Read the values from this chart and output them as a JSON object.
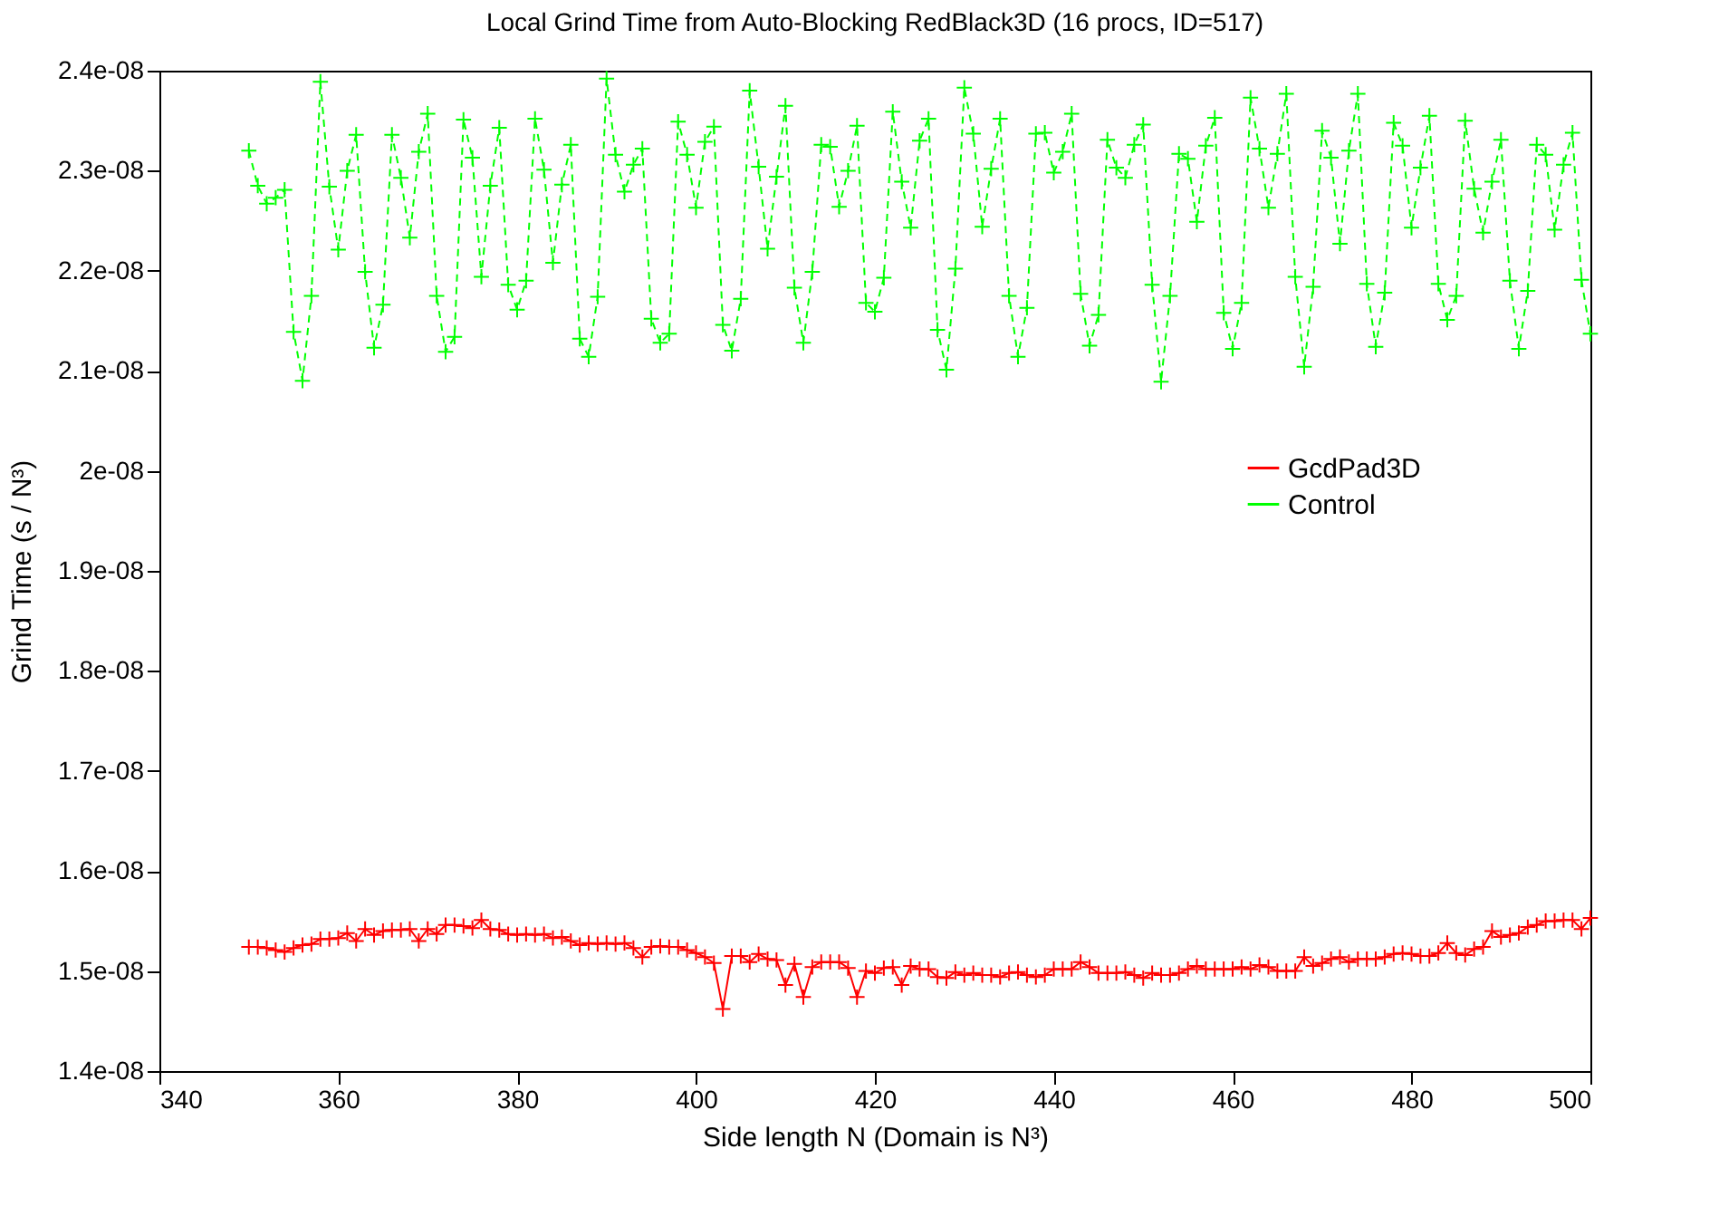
{
  "chart_data": {
    "type": "line",
    "title": "Local Grind Time from Auto-Blocking RedBlack3D (16 procs, ID=517)",
    "xlabel": "Side length N (Domain is N³)",
    "ylabel": "Grind Time (s / N³)",
    "x": [
      350,
      351,
      352,
      353,
      354,
      355,
      356,
      357,
      358,
      359,
      360,
      361,
      362,
      363,
      364,
      365,
      366,
      367,
      368,
      369,
      370,
      371,
      372,
      373,
      374,
      375,
      376,
      377,
      378,
      379,
      380,
      381,
      382,
      383,
      384,
      385,
      386,
      387,
      388,
      389,
      390,
      391,
      392,
      393,
      394,
      395,
      396,
      397,
      398,
      399,
      400,
      401,
      402,
      403,
      404,
      405,
      406,
      407,
      408,
      409,
      410,
      411,
      412,
      413,
      414,
      415,
      416,
      417,
      418,
      419,
      420,
      421,
      422,
      423,
      424,
      425,
      426,
      427,
      428,
      429,
      430,
      431,
      432,
      433,
      434,
      435,
      436,
      437,
      438,
      439,
      440,
      441,
      442,
      443,
      444,
      445,
      446,
      447,
      448,
      449,
      450,
      451,
      452,
      453,
      454,
      455,
      456,
      457,
      458,
      459,
      460,
      461,
      462,
      463,
      464,
      465,
      466,
      467,
      468,
      469,
      470,
      471,
      472,
      473,
      474,
      475,
      476,
      477,
      478,
      479,
      480,
      481,
      482,
      483,
      484,
      485,
      486,
      487,
      488,
      489,
      490,
      491,
      492,
      493,
      494,
      495,
      496,
      497,
      498,
      499,
      500
    ],
    "series": [
      {
        "name": "GcdPad3D",
        "color": "#ff0000",
        "marker": "cross",
        "line_style": "solid",
        "values": [
          1.524e-08,
          1.524e-08,
          1.523e-08,
          1.521e-08,
          1.519e-08,
          1.523e-08,
          1.526e-08,
          1.527e-08,
          1.532e-08,
          1.532e-08,
          1.533e-08,
          1.538e-08,
          1.53e-08,
          1.542e-08,
          1.536e-08,
          1.54e-08,
          1.541e-08,
          1.541e-08,
          1.542e-08,
          1.53e-08,
          1.542e-08,
          1.537e-08,
          1.546e-08,
          1.546e-08,
          1.545e-08,
          1.543e-08,
          1.551e-08,
          1.542e-08,
          1.541e-08,
          1.537e-08,
          1.536e-08,
          1.537e-08,
          1.536e-08,
          1.537e-08,
          1.533e-08,
          1.534e-08,
          1.53e-08,
          1.526e-08,
          1.528e-08,
          1.527e-08,
          1.528e-08,
          1.527e-08,
          1.528e-08,
          1.523e-08,
          1.514e-08,
          1.524e-08,
          1.525e-08,
          1.524e-08,
          1.524e-08,
          1.521e-08,
          1.518e-08,
          1.514e-08,
          1.508e-08,
          1.462e-08,
          1.515e-08,
          1.515e-08,
          1.509e-08,
          1.517e-08,
          1.512e-08,
          1.511e-08,
          1.486e-08,
          1.507e-08,
          1.474e-08,
          1.504e-08,
          1.509e-08,
          1.509e-08,
          1.509e-08,
          1.503e-08,
          1.474e-08,
          1.5e-08,
          1.498e-08,
          1.503e-08,
          1.504e-08,
          1.486e-08,
          1.505e-08,
          1.502e-08,
          1.502e-08,
          1.494e-08,
          1.493e-08,
          1.499e-08,
          1.496e-08,
          1.498e-08,
          1.496e-08,
          1.496e-08,
          1.494e-08,
          1.498e-08,
          1.499e-08,
          1.496e-08,
          1.494e-08,
          1.496e-08,
          1.502e-08,
          1.502e-08,
          1.502e-08,
          1.509e-08,
          1.504e-08,
          1.498e-08,
          1.498e-08,
          1.498e-08,
          1.499e-08,
          1.496e-08,
          1.493e-08,
          1.498e-08,
          1.496e-08,
          1.496e-08,
          1.498e-08,
          1.502e-08,
          1.505e-08,
          1.502e-08,
          1.502e-08,
          1.502e-08,
          1.502e-08,
          1.504e-08,
          1.502e-08,
          1.506e-08,
          1.504e-08,
          1.5e-08,
          1.5e-08,
          1.5e-08,
          1.514e-08,
          1.505e-08,
          1.508e-08,
          1.512e-08,
          1.514e-08,
          1.509e-08,
          1.512e-08,
          1.512e-08,
          1.512e-08,
          1.514e-08,
          1.517e-08,
          1.518e-08,
          1.517e-08,
          1.515e-08,
          1.515e-08,
          1.518e-08,
          1.528e-08,
          1.518e-08,
          1.516e-08,
          1.522e-08,
          1.524e-08,
          1.54e-08,
          1.534e-08,
          1.536e-08,
          1.538e-08,
          1.544e-08,
          1.546e-08,
          1.55e-08,
          1.55e-08,
          1.551e-08,
          1.551e-08,
          1.542e-08,
          1.553e-08
        ]
      },
      {
        "name": "Control",
        "color": "#00ff00",
        "marker": "cross",
        "line_style": "dashed",
        "values": [
          2.32e-08,
          2.285e-08,
          2.267e-08,
          2.273e-08,
          2.281e-08,
          2.139e-08,
          2.09e-08,
          2.175e-08,
          2.389e-08,
          2.284e-08,
          2.221e-08,
          2.3e-08,
          2.336e-08,
          2.199e-08,
          2.123e-08,
          2.166e-08,
          2.336e-08,
          2.293e-08,
          2.233e-08,
          2.319e-08,
          2.357e-08,
          2.175e-08,
          2.119e-08,
          2.134e-08,
          2.351e-08,
          2.313e-08,
          2.194e-08,
          2.285e-08,
          2.343e-08,
          2.186e-08,
          2.161e-08,
          2.19e-08,
          2.352e-08,
          2.301e-08,
          2.208e-08,
          2.286e-08,
          2.326e-08,
          2.132e-08,
          2.114e-08,
          2.174e-08,
          2.392e-08,
          2.316e-08,
          2.279e-08,
          2.306e-08,
          2.322e-08,
          2.152e-08,
          2.128e-08,
          2.137e-08,
          2.349e-08,
          2.316e-08,
          2.263e-08,
          2.329e-08,
          2.344e-08,
          2.146e-08,
          2.12e-08,
          2.172e-08,
          2.38e-08,
          2.304e-08,
          2.222e-08,
          2.294e-08,
          2.365e-08,
          2.183e-08,
          2.128e-08,
          2.199e-08,
          2.326e-08,
          2.324e-08,
          2.264e-08,
          2.3e-08,
          2.345e-08,
          2.168e-08,
          2.159e-08,
          2.193e-08,
          2.359e-08,
          2.289e-08,
          2.243e-08,
          2.33e-08,
          2.352e-08,
          2.141e-08,
          2.101e-08,
          2.202e-08,
          2.383e-08,
          2.337e-08,
          2.244e-08,
          2.302e-08,
          2.352e-08,
          2.175e-08,
          2.114e-08,
          2.163e-08,
          2.337e-08,
          2.338e-08,
          2.298e-08,
          2.319e-08,
          2.357e-08,
          2.177e-08,
          2.125e-08,
          2.156e-08,
          2.331e-08,
          2.303e-08,
          2.293e-08,
          2.326e-08,
          2.346e-08,
          2.186e-08,
          2.089e-08,
          2.175e-08,
          2.317e-08,
          2.312e-08,
          2.249e-08,
          2.325e-08,
          2.353e-08,
          2.158e-08,
          2.122e-08,
          2.168e-08,
          2.373e-08,
          2.322e-08,
          2.263e-08,
          2.317e-08,
          2.377e-08,
          2.194e-08,
          2.104e-08,
          2.184e-08,
          2.34e-08,
          2.313e-08,
          2.227e-08,
          2.32e-08,
          2.377e-08,
          2.187e-08,
          2.124e-08,
          2.178e-08,
          2.348e-08,
          2.325e-08,
          2.243e-08,
          2.303e-08,
          2.355e-08,
          2.187e-08,
          2.151e-08,
          2.175e-08,
          2.35e-08,
          2.282e-08,
          2.238e-08,
          2.289e-08,
          2.331e-08,
          2.19e-08,
          2.122e-08,
          2.18e-08,
          2.326e-08,
          2.316e-08,
          2.241e-08,
          2.306e-08,
          2.338e-08,
          2.191e-08,
          2.137e-08
        ]
      }
    ],
    "xlim": [
      340,
      500
    ],
    "xticks": [
      340,
      360,
      380,
      400,
      420,
      440,
      460,
      480,
      500
    ],
    "ylim": [
      1.4e-08,
      2.4e-08
    ],
    "yticks": [
      {
        "value": 1.4e-08,
        "label": "1.4e-08"
      },
      {
        "value": 1.5e-08,
        "label": "1.5e-08"
      },
      {
        "value": 1.6e-08,
        "label": "1.6e-08"
      },
      {
        "value": 1.7e-08,
        "label": "1.7e-08"
      },
      {
        "value": 1.8e-08,
        "label": "1.8e-08"
      },
      {
        "value": 1.9e-08,
        "label": "1.9e-08"
      },
      {
        "value": 2e-08,
        "label": "2e-08"
      },
      {
        "value": 2.1e-08,
        "label": "2.1e-08"
      },
      {
        "value": 2.2e-08,
        "label": "2.2e-08"
      },
      {
        "value": 2.3e-08,
        "label": "2.3e-08"
      },
      {
        "value": 2.4e-08,
        "label": "2.4e-08"
      }
    ],
    "grid": false,
    "legend": "top right"
  }
}
